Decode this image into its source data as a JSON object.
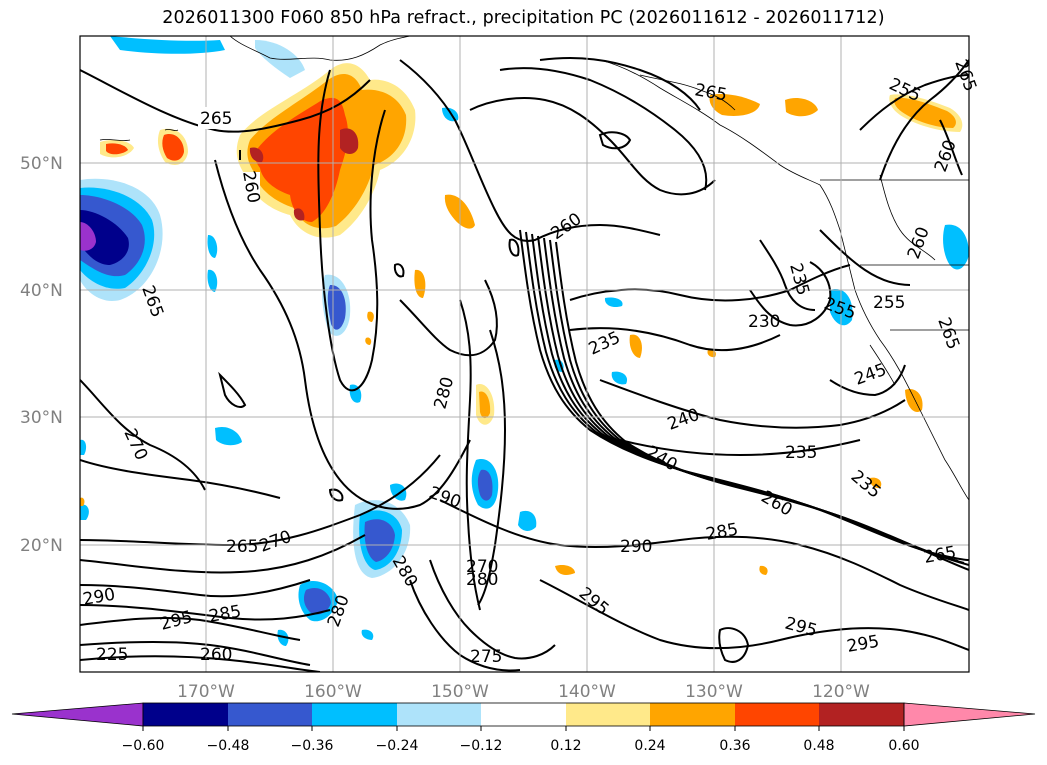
{
  "title": "2026011300 F060 850 hPa refract., precipitation PC (2026011612 - 2026011712)",
  "lat_labels": [
    "50°N",
    "40°N",
    "30°N",
    "20°N"
  ],
  "lon_labels": [
    "170°W",
    "160°W",
    "150°W",
    "140°W",
    "130°W",
    "120°W"
  ],
  "colorbar": {
    "ticks": [
      "−0.60",
      "−0.48",
      "−0.36",
      "−0.24",
      "−0.12",
      "0.12",
      "0.24",
      "0.36",
      "0.48",
      "0.60"
    ],
    "colors": [
      "#9a32cd",
      "#00008b",
      "#3658cf",
      "#00bfff",
      "#aee3fa",
      "#ffffff",
      "#ffe98a",
      "#ffa500",
      "#ff4500",
      "#b22222",
      "#ff88aa"
    ]
  },
  "contour_labels": [
    "265",
    "260",
    "265",
    "265",
    "270",
    "290",
    "295",
    "285",
    "280",
    "280",
    "270",
    "280",
    "290",
    "280",
    "235",
    "240",
    "240",
    "235",
    "230",
    "235",
    "255",
    "255",
    "245",
    "235",
    "260",
    "285",
    "290",
    "295",
    "295",
    "295",
    "265",
    "260",
    "265",
    "255",
    "260",
    "260",
    "265",
    "265",
    "270",
    "225",
    "260",
    "275"
  ]
}
